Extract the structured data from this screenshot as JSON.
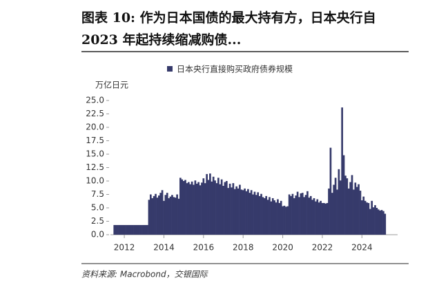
{
  "chart_data": {
    "type": "bar",
    "title": "图表 10: 作为日本国债的最大持有方，日本央行自 2023 年起持续缩减购债...",
    "legend": "日本央行直接购买政府债券规模",
    "y_label": "万亿日元",
    "source": "资料来源: Macrobond，交银国际",
    "color": "#363a6b",
    "grid": false,
    "xlim": [
      2011.3,
      2025.8
    ],
    "xticks": [
      2012,
      2014,
      2016,
      2018,
      2020,
      2022,
      2024
    ],
    "ylim": [
      0,
      25
    ],
    "yticks": [
      {
        "value": 0,
        "label": "0.0"
      },
      2.5,
      {
        "value": 5,
        "label": "5.0"
      },
      7.5,
      {
        "value": 10,
        "label": "10.0"
      },
      12.5,
      {
        "value": 15,
        "label": "15.0"
      },
      17.5,
      {
        "value": 20,
        "label": "20.0"
      },
      22.5,
      {
        "value": 25,
        "label": "25.0"
      }
    ],
    "x": [
      2011.5,
      2011.583,
      2011.667,
      2011.75,
      2011.833,
      2011.917,
      2012,
      2012.083,
      2012.167,
      2012.25,
      2012.333,
      2012.417,
      2012.5,
      2012.583,
      2012.667,
      2012.75,
      2012.833,
      2012.917,
      2013,
      2013.083,
      2013.167,
      2013.25,
      2013.333,
      2013.417,
      2013.5,
      2013.583,
      2013.667,
      2013.75,
      2013.833,
      2013.917,
      2014,
      2014.083,
      2014.167,
      2014.25,
      2014.333,
      2014.417,
      2014.5,
      2014.583,
      2014.667,
      2014.75,
      2014.833,
      2014.917,
      2015,
      2015.083,
      2015.167,
      2015.25,
      2015.333,
      2015.417,
      2015.5,
      2015.583,
      2015.667,
      2015.75,
      2015.833,
      2015.917,
      2016,
      2016.083,
      2016.167,
      2016.25,
      2016.333,
      2016.417,
      2016.5,
      2016.583,
      2016.667,
      2016.75,
      2016.833,
      2016.917,
      2017,
      2017.083,
      2017.167,
      2017.25,
      2017.333,
      2017.417,
      2017.5,
      2017.583,
      2017.667,
      2017.75,
      2017.833,
      2017.917,
      2018,
      2018.083,
      2018.167,
      2018.25,
      2018.333,
      2018.417,
      2018.5,
      2018.583,
      2018.667,
      2018.75,
      2018.833,
      2018.917,
      2019,
      2019.083,
      2019.167,
      2019.25,
      2019.333,
      2019.417,
      2019.5,
      2019.583,
      2019.667,
      2019.75,
      2019.833,
      2019.917,
      2020,
      2020.083,
      2020.167,
      2020.25,
      2020.333,
      2020.417,
      2020.5,
      2020.583,
      2020.667,
      2020.75,
      2020.833,
      2020.917,
      2021,
      2021.083,
      2021.167,
      2021.25,
      2021.333,
      2021.417,
      2021.5,
      2021.583,
      2021.667,
      2021.75,
      2021.833,
      2021.917,
      2022,
      2022.083,
      2022.167,
      2022.25,
      2022.333,
      2022.417,
      2022.5,
      2022.583,
      2022.667,
      2022.75,
      2022.833,
      2022.917,
      2023,
      2023.083,
      2023.167,
      2023.25,
      2023.333,
      2023.417,
      2023.5,
      2023.583,
      2023.667,
      2023.75,
      2023.833,
      2023.917,
      2024,
      2024.083,
      2024.167,
      2024.25,
      2024.333,
      2024.417,
      2024.5,
      2024.583,
      2024.667,
      2024.75,
      2024.833,
      2024.917,
      2025,
      2025.083,
      2025.167
    ],
    "values": [
      1.8,
      1.8,
      1.8,
      1.8,
      1.8,
      1.8,
      1.8,
      1.8,
      1.8,
      1.8,
      1.8,
      1.8,
      1.8,
      1.8,
      1.8,
      1.8,
      1.8,
      1.8,
      1.8,
      1.8,
      1.8,
      6.5,
      7.5,
      6.8,
      7.2,
      7.6,
      6.9,
      7.3,
      7.8,
      8.3,
      6.3,
      7.4,
      7.8,
      6.8,
      7.1,
      7.4,
      7.0,
      6.9,
      7.5,
      6.7,
      10.6,
      10.3,
      10.0,
      10.2,
      9.6,
      9.8,
      9.4,
      9.9,
      9.3,
      10.1,
      9.5,
      9.8,
      9.2,
      9.7,
      10.5,
      9.6,
      11.3,
      10.2,
      11.4,
      9.9,
      10.8,
      10.1,
      9.6,
      10.6,
      9.4,
      10.3,
      9.1,
      9.8,
      10.0,
      8.7,
      9.5,
      8.8,
      9.6,
      8.5,
      9.0,
      8.6,
      9.3,
      8.4,
      8.3,
      8.6,
      8.1,
      8.5,
      7.8,
      8.3,
      7.5,
      8.0,
      7.4,
      7.9,
      7.2,
      7.6,
      7.0,
      6.8,
      7.2,
      6.5,
      7.0,
      6.2,
      6.8,
      6.4,
      6.0,
      6.6,
      5.9,
      6.3,
      5.3,
      5.4,
      5.2,
      5.3,
      7.5,
      7.2,
      7.6,
      6.8,
      7.3,
      8.0,
      7.0,
      7.7,
      7.8,
      7.0,
      7.4,
      8.1,
      6.9,
      7.2,
      6.5,
      6.8,
      6.2,
      6.6,
      6.0,
      6.3,
      5.9,
      5.9,
      5.8,
      5.9,
      8.6,
      16.2,
      7.8,
      9.3,
      10.6,
      8.4,
      12.2,
      10.1,
      23.7,
      14.8,
      11.0,
      10.5,
      8.6,
      9.8,
      11.1,
      8.4,
      9.7,
      8.9,
      9.4,
      8.2,
      6.4,
      7.1,
      6.3,
      6.0,
      5.9,
      4.8,
      6.3,
      5.1,
      5.5,
      5.0,
      4.7,
      4.5,
      4.6,
      4.4,
      3.9
    ]
  }
}
